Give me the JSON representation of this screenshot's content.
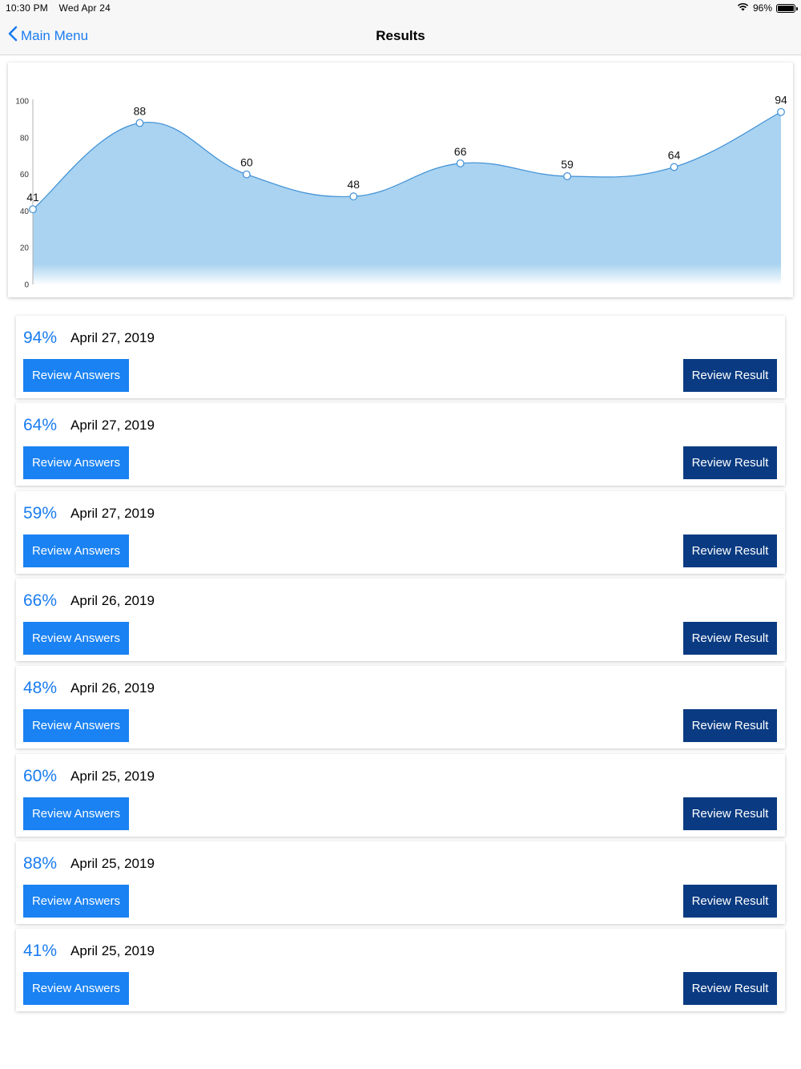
{
  "status_bar": {
    "time": "10:30 PM",
    "date": "Wed Apr 24",
    "battery": "96%"
  },
  "nav": {
    "back_label": "Main Menu",
    "title": "Results"
  },
  "colors": {
    "accent": "#1a7cf0",
    "answers_button": "#1a82f2",
    "result_button": "#0a3b82",
    "chart_fill": "#a9d3f0",
    "chart_line": "#3d8fd6"
  },
  "chart_data": {
    "type": "area",
    "x": [
      1,
      2,
      3,
      4,
      5,
      6,
      7,
      8
    ],
    "values": [
      41,
      88,
      60,
      48,
      66,
      59,
      64,
      94
    ],
    "ylim": [
      0,
      100
    ],
    "yticks": [
      0,
      20,
      40,
      60,
      80,
      100
    ],
    "smooth": true,
    "data_labels": true
  },
  "results": [
    {
      "score": "94%",
      "date": "April 27, 2019",
      "answers_label": "Review Answers",
      "result_label": "Review Result"
    },
    {
      "score": "64%",
      "date": "April 27, 2019",
      "answers_label": "Review Answers",
      "result_label": "Review Result"
    },
    {
      "score": "59%",
      "date": "April 27, 2019",
      "answers_label": "Review Answers",
      "result_label": "Review Result"
    },
    {
      "score": "66%",
      "date": "April 26, 2019",
      "answers_label": "Review Answers",
      "result_label": "Review Result"
    },
    {
      "score": "48%",
      "date": "April 26, 2019",
      "answers_label": "Review Answers",
      "result_label": "Review Result"
    },
    {
      "score": "60%",
      "date": "April 25, 2019",
      "answers_label": "Review Answers",
      "result_label": "Review Result"
    },
    {
      "score": "88%",
      "date": "April 25, 2019",
      "answers_label": "Review Answers",
      "result_label": "Review Result"
    },
    {
      "score": "41%",
      "date": "April 25, 2019",
      "answers_label": "Review Answers",
      "result_label": "Review Result"
    }
  ]
}
